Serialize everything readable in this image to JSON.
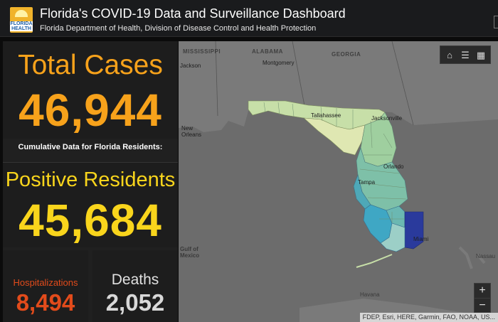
{
  "header": {
    "title": "Florida's COVID-19 Data and Surveillance Dashboard",
    "subtitle": "Florida Department of Health, Division of Disease Control and Health Protection",
    "logo_text": "FLORIDA HEALTH"
  },
  "stats": {
    "total_label": "Total Cases",
    "total_value": "46,944",
    "cumulative_note": "Cumulative Data for Florida Residents:",
    "positive_label": "Positive Residents",
    "positive_value": "45,684",
    "hospitalizations_label": "Hospitalizations",
    "hospitalizations_value": "8,494",
    "deaths_label": "Deaths",
    "deaths_value": "2,052"
  },
  "colors": {
    "total": "#f7a21b",
    "positive": "#f9d51c",
    "hospitalizations": "#e24b1b",
    "deaths": "#d8d8d8",
    "map_bg": "#6c6c6c"
  },
  "map": {
    "labels": {
      "mississippi": "MISSISSIPPI",
      "alabama": "ALABAMA",
      "georgia": "GEORGIA",
      "jackson": "Jackson",
      "montgomery": "Montgomery",
      "tallahassee": "Tallahassee",
      "jacksonville": "Jacksonville",
      "new_orleans": "New Orleans",
      "orlando": "Orlando",
      "tampa": "Tampa",
      "miami": "Miami",
      "gulf": "Gulf of Mexico",
      "havana": "Havana",
      "nassau": "Nassau"
    },
    "attribution": "FDEP, Esri, HERE, Garmin, FAO, NOAA, US...",
    "tools": [
      "home-icon",
      "legend-icon",
      "qr-icon"
    ],
    "zoom_in": "+",
    "zoom_out": "−"
  }
}
